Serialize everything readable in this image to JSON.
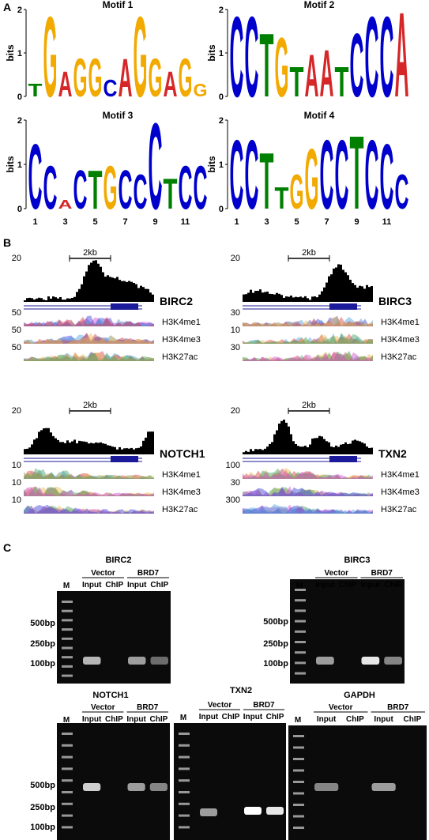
{
  "panel_a": {
    "label": "A",
    "axis_label": "bits",
    "ylim": [
      0,
      2
    ],
    "yticks": [
      0,
      1,
      2
    ],
    "motifs": [
      {
        "title": "Motif 1",
        "letters": [
          "T",
          "G",
          "A",
          "G",
          "G",
          "C",
          "A",
          "G",
          "G",
          "A",
          "G",
          "G"
        ],
        "heights": [
          0.3,
          1.9,
          0.6,
          0.9,
          0.9,
          0.4,
          0.9,
          1.9,
          0.9,
          0.6,
          0.9,
          0.3
        ]
      },
      {
        "title": "Motif 2",
        "letters": [
          "C",
          "C",
          "T",
          "G",
          "T",
          "A",
          "A",
          "T",
          "C",
          "C",
          "C",
          "A"
        ],
        "heights": [
          1.9,
          1.9,
          1.5,
          1.4,
          0.7,
          1.0,
          1.1,
          0.7,
          1.5,
          1.9,
          1.9,
          2.0
        ]
      },
      {
        "title": "Motif 3",
        "letters": [
          "C",
          "C",
          "A",
          "C",
          "T",
          "G",
          "C",
          "C",
          "C",
          "T",
          "C",
          "C"
        ],
        "heights": [
          1.5,
          1.0,
          0.2,
          0.9,
          0.9,
          1.0,
          0.9,
          0.8,
          2.0,
          0.7,
          1.0,
          1.0
        ],
        "xticks": [
          1,
          3,
          5,
          7,
          9,
          11
        ]
      },
      {
        "title": "Motif 4",
        "letters": [
          "C",
          "C",
          "T",
          "T",
          "G",
          "G",
          "C",
          "C",
          "T",
          "C",
          "C",
          "C"
        ],
        "heights": [
          1.6,
          1.6,
          1.3,
          0.5,
          0.8,
          1.4,
          1.6,
          1.6,
          1.7,
          1.6,
          1.5,
          0.8
        ],
        "xticks": [
          1,
          3,
          5,
          7,
          9,
          11
        ]
      }
    ]
  },
  "panel_b": {
    "label": "B",
    "scalebar": "2kb",
    "histone_marks": [
      "H3K4me1",
      "H3K4me3",
      "H3K27ac"
    ],
    "genes": [
      {
        "name": "BIRC2",
        "scales": [
          20,
          50,
          50,
          50
        ]
      },
      {
        "name": "BIRC3",
        "scales": [
          20,
          30,
          10,
          30
        ]
      },
      {
        "name": "NOTCH1",
        "scales": [
          20,
          10,
          10,
          10
        ]
      },
      {
        "name": "TXN2",
        "scales": [
          20,
          100,
          30,
          300
        ]
      }
    ]
  },
  "panel_c": {
    "label": "C",
    "marker": "M",
    "groups": [
      "Vector",
      "BRD7"
    ],
    "lanes": [
      "Input",
      "ChIP"
    ],
    "gels": [
      {
        "title": "BIRC2",
        "ladder": [
          "500bp",
          "250bp",
          "100bp"
        ]
      },
      {
        "title": "BIRC3",
        "ladder": [
          "500bp",
          "250bp",
          "100bp"
        ]
      },
      {
        "title": "NOTCH1",
        "ladder": [
          "500bp",
          "250bp",
          "100bp"
        ]
      },
      {
        "title": "TXN2"
      },
      {
        "title": "GAPDH"
      }
    ]
  }
}
